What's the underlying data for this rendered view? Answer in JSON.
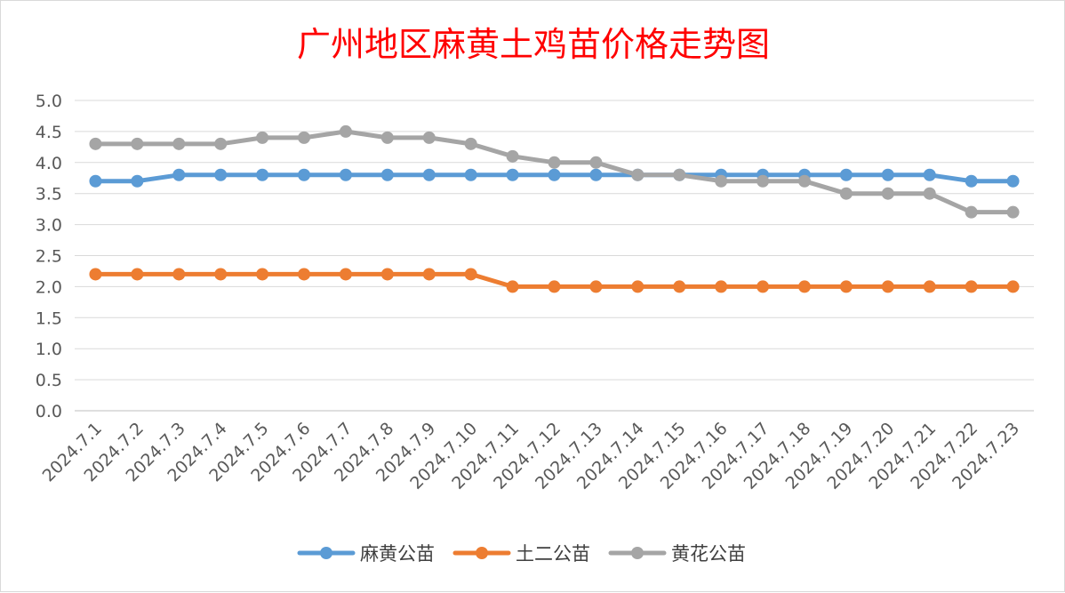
{
  "chart_data": {
    "type": "line",
    "title": "广州地区麻黄土鸡苗价格走势图",
    "title_color": "#ff0000",
    "xlabel": "",
    "ylabel": "",
    "ylim": [
      0,
      5
    ],
    "y_ticks": [
      "0.0",
      "0.5",
      "1.0",
      "1.5",
      "2.0",
      "2.5",
      "3.0",
      "3.5",
      "4.0",
      "4.5",
      "5.0"
    ],
    "grid": true,
    "legend_position": "bottom",
    "categories": [
      "2024.7.1",
      "2024.7.2",
      "2024.7.3",
      "2024.7.4",
      "2024.7.5",
      "2024.7.6",
      "2024.7.7",
      "2024.7.8",
      "2024.7.9",
      "2024.7.10",
      "2024.7.11",
      "2024.7.12",
      "2024.7.13",
      "2024.7.14",
      "2024.7.15",
      "2024.7.16",
      "2024.7.17",
      "2024.7.18",
      "2024.7.19",
      "2024.7.20",
      "2024.7.21",
      "2024.7.22",
      "2024.7.23"
    ],
    "series": [
      {
        "name": "麻黄公苗",
        "color": "#5b9bd5",
        "values": [
          3.7,
          3.7,
          3.8,
          3.8,
          3.8,
          3.8,
          3.8,
          3.8,
          3.8,
          3.8,
          3.8,
          3.8,
          3.8,
          3.8,
          3.8,
          3.8,
          3.8,
          3.8,
          3.8,
          3.8,
          3.8,
          3.7,
          3.7
        ]
      },
      {
        "name": "土二公苗",
        "color": "#ed7d31",
        "values": [
          2.2,
          2.2,
          2.2,
          2.2,
          2.2,
          2.2,
          2.2,
          2.2,
          2.2,
          2.2,
          2.0,
          2.0,
          2.0,
          2.0,
          2.0,
          2.0,
          2.0,
          2.0,
          2.0,
          2.0,
          2.0,
          2.0,
          2.0
        ]
      },
      {
        "name": "黄花公苗",
        "color": "#a5a5a5",
        "values": [
          4.3,
          4.3,
          4.3,
          4.3,
          4.4,
          4.4,
          4.5,
          4.4,
          4.4,
          4.3,
          4.1,
          4.0,
          4.0,
          3.8,
          3.8,
          3.7,
          3.7,
          3.7,
          3.5,
          3.5,
          3.5,
          3.2,
          3.2
        ]
      }
    ]
  }
}
